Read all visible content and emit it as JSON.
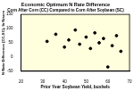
{
  "chart_data": {
    "type": "scatter",
    "title": "Economic Optimum N Rate Difference",
    "subtitle": "Corn After Corn (CC) Compared to Corn After Soybean (SC)",
    "x_label": "Prior Year Soybean Yield, bushels",
    "y_label": "N Rate Difference (CC-SC), lb N/acre",
    "x": [
      32,
      36,
      40,
      42,
      45,
      47,
      50,
      52,
      54,
      56,
      58,
      60,
      62,
      64,
      66
    ],
    "values": [
      55,
      80,
      35,
      60,
      95,
      45,
      70,
      30,
      85,
      50,
      65,
      -35,
      40,
      75,
      20
    ],
    "xlim": [
      20,
      70
    ],
    "xticks": [
      20,
      30,
      40,
      50,
      60,
      70
    ],
    "ylim": [
      -50,
      150
    ],
    "yticks": [
      -50,
      0,
      50,
      100,
      150
    ],
    "color": "#000000",
    "marker": "circle",
    "grid": false
  }
}
